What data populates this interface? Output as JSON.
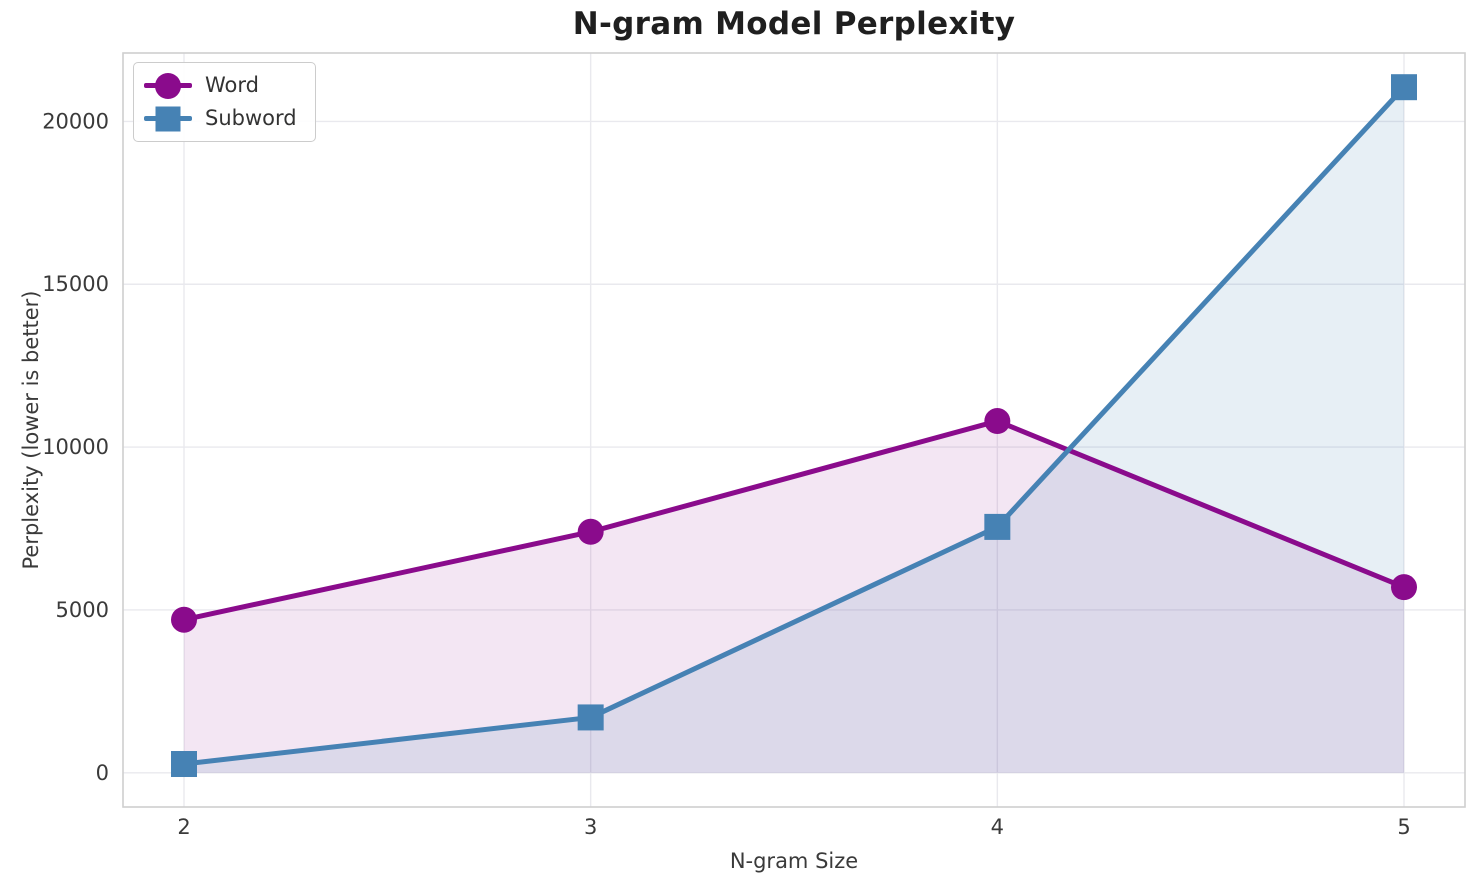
{
  "chart_data": {
    "type": "line",
    "title": "N-gram Model Perplexity",
    "xlabel": "N-gram Size",
    "ylabel": "Perplexity (lower is better)",
    "x": [
      2,
      3,
      4,
      5
    ],
    "xtick_labels": [
      "2",
      "3",
      "4",
      "5"
    ],
    "yticks": [
      0,
      5000,
      10000,
      15000,
      20000
    ],
    "ytick_labels": [
      "0",
      "5000",
      "10000",
      "15000",
      "20000"
    ],
    "xlim": [
      1.85,
      5.15
    ],
    "ylim": [
      -1050,
      22100
    ],
    "grid": true,
    "legend_position": "upper left",
    "fill_baseline": 0,
    "series": [
      {
        "name": "Word",
        "marker": "circle",
        "color": "#8A0B8C",
        "fill_opacity": 0.1,
        "values": [
          4700,
          7400,
          10800,
          5700
        ]
      },
      {
        "name": "Subword",
        "marker": "square",
        "color": "#4682B4",
        "fill_opacity": 0.13,
        "values": [
          270,
          1700,
          7550,
          21050
        ]
      }
    ],
    "colors": {
      "grid": "#e9e9ee",
      "spine": "#cfcfcf",
      "tick_text": "#3a3a3a",
      "title_text": "#1f1f1f",
      "background": "#ffffff"
    }
  }
}
